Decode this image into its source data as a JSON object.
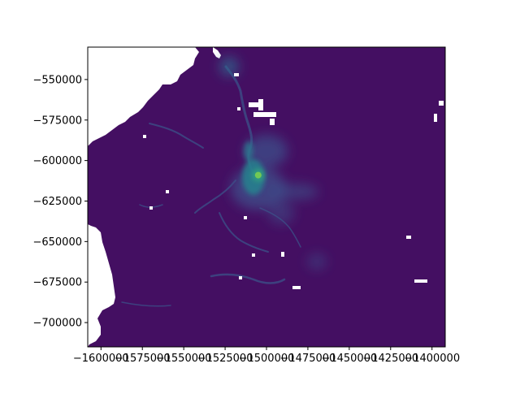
{
  "chart_data": {
    "type": "heatmap",
    "title": "",
    "xlabel": "",
    "ylabel": "",
    "colormap": "viridis",
    "background_value_color": "#440f62",
    "nodata_color": "#ffffff",
    "xlim": [
      -1608000,
      -1392000
    ],
    "ylim": [
      -715000,
      -530000
    ],
    "x_ticks": [
      {
        "value": -1600000,
        "label": "−1600000"
      },
      {
        "value": -1575000,
        "label": "−1575000"
      },
      {
        "value": -1550000,
        "label": "−1550000"
      },
      {
        "value": -1525000,
        "label": "−1525000"
      },
      {
        "value": -1500000,
        "label": "−1500000"
      },
      {
        "value": -1475000,
        "label": "−1475000"
      },
      {
        "value": -1450000,
        "label": "−1450000"
      },
      {
        "value": -1425000,
        "label": "−1425000"
      },
      {
        "value": -1400000,
        "label": "−1400000"
      }
    ],
    "y_ticks": [
      {
        "value": -550000,
        "label": "−550000"
      },
      {
        "value": -575000,
        "label": "−575000"
      },
      {
        "value": -600000,
        "label": "−600000"
      },
      {
        "value": -625000,
        "label": "−625000"
      },
      {
        "value": -650000,
        "label": "−650000"
      },
      {
        "value": -675000,
        "label": "−675000"
      },
      {
        "value": -700000,
        "label": "−700000"
      }
    ],
    "grid": false,
    "legend": "none",
    "peak": {
      "x": -1505000,
      "y": -609000,
      "value_fraction": 1.0
    }
  }
}
